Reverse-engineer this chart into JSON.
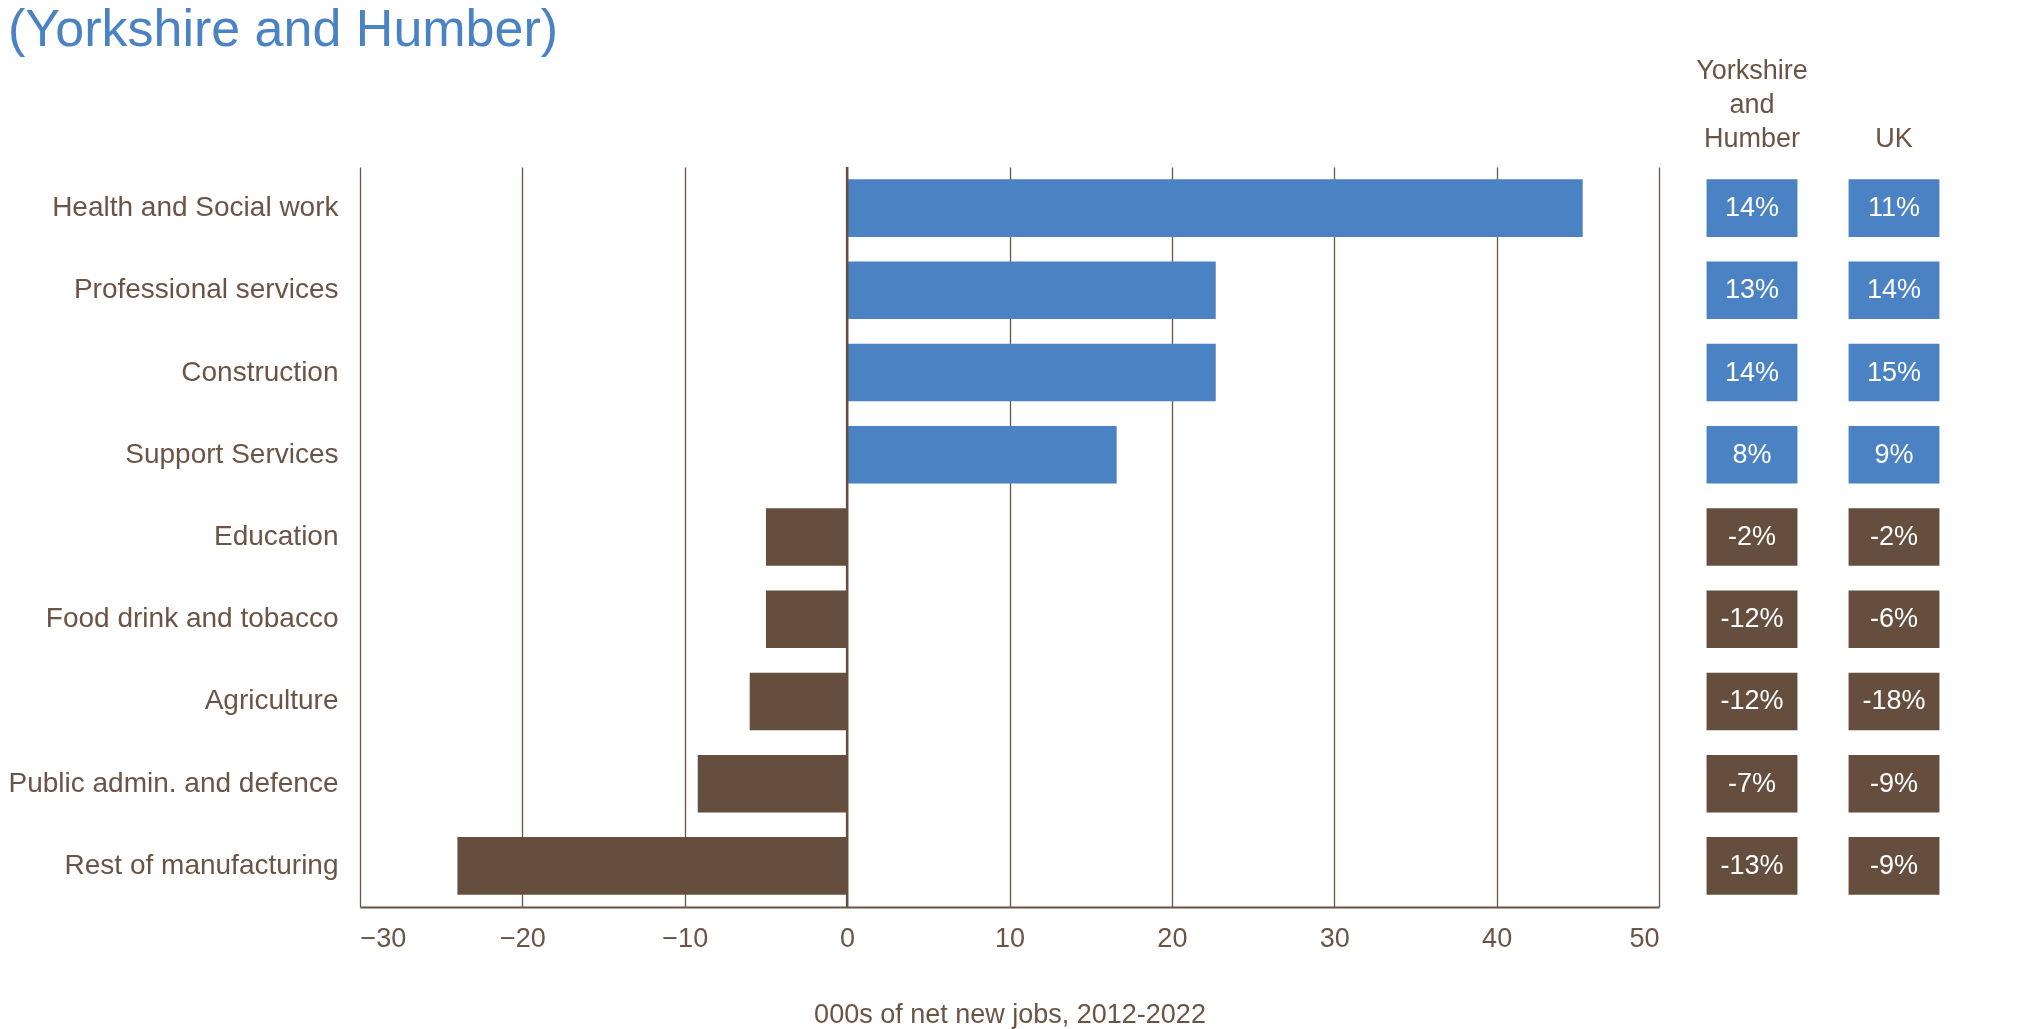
{
  "chart_data": [
    {
      "type": "bar",
      "orientation": "horizontal",
      "title": "(Yorkshire and Humber)",
      "xlabel": "000s of net new jobs, 2012-2022",
      "categories": [
        "Health and Social work",
        "Professional services",
        "Construction",
        "Support Services",
        "Education",
        "Food drink and tobacco",
        "Agriculture",
        "Public admin. and defence",
        "Rest of manufacturing"
      ],
      "values": [
        45.3,
        22.7,
        22.7,
        16.6,
        -5.0,
        -5.0,
        -6.0,
        -9.2,
        -24.0
      ],
      "colors": [
        "#4a82c3",
        "#4a82c3",
        "#4a82c3",
        "#4a82c3",
        "#654e3e",
        "#654e3e",
        "#654e3e",
        "#654e3e",
        "#654e3e"
      ],
      "xlim": [
        -30,
        50
      ],
      "xticks": [
        -30,
        -20,
        -10,
        0,
        10,
        20,
        30,
        40,
        50
      ],
      "grid": "x",
      "ref_lines": [
        {
          "axis": "x",
          "value": 0,
          "color": "#654e3e"
        }
      ]
    },
    {
      "type": "heatmap",
      "categories": [
        "Yorkshire and Humber",
        "UK"
      ],
      "y_categories": [
        null,
        null,
        null,
        null,
        null,
        null,
        null,
        null,
        null
      ],
      "cells": [
        [
          14,
          11
        ],
        [
          13,
          14
        ],
        [
          14,
          15
        ],
        [
          8,
          9
        ],
        [
          -2,
          -2
        ],
        [
          -12,
          -6
        ],
        [
          -12,
          -18
        ],
        [
          -7,
          -9
        ],
        [
          -13,
          -9
        ]
      ],
      "cell_labels": [
        [
          "14%",
          "11%"
        ],
        [
          "13%",
          "14%"
        ],
        [
          "14%",
          "15%"
        ],
        [
          "8%",
          "9%"
        ],
        [
          "-2%",
          "-2%"
        ],
        [
          "-12%",
          "-6%"
        ],
        [
          "-12%",
          "-18%"
        ],
        [
          "-7%",
          "-9%"
        ],
        [
          "-13%",
          "-9%"
        ]
      ],
      "colors": [
        "#4a82c3",
        "#4a82c3",
        "#4a82c3",
        "#4a82c3",
        "#654e3e",
        "#654e3e",
        "#654e3e",
        "#654e3e",
        "#654e3e"
      ]
    }
  ]
}
